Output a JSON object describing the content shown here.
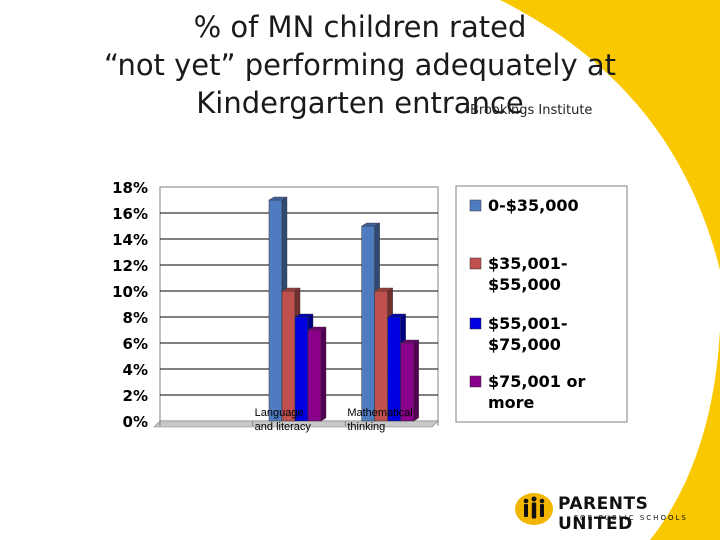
{
  "slide": {
    "title_lines": [
      "% of MN children rated",
      "“not yet” performing adequately at",
      "Kindergarten entrance"
    ],
    "source": "Brookings Institute",
    "background_accent": "#f9c800"
  },
  "chart_data": {
    "type": "bar",
    "categories": [
      "",
      "Language and literacy",
      "Mathematical thinking"
    ],
    "category_label_lines": [
      [],
      [
        "Language",
        "and literacy"
      ],
      [
        "Mathematical",
        "thinking"
      ]
    ],
    "ylim": [
      0,
      18
    ],
    "yticks": [
      "0%",
      "2%",
      "4%",
      "6%",
      "8%",
      "10%",
      "12%",
      "14%",
      "16%",
      "18%"
    ],
    "series": [
      {
        "name": "0-$35,000",
        "name_lines": [
          "0-$35,000"
        ],
        "color": "#4f7cc0",
        "values": [
          null,
          17,
          15
        ]
      },
      {
        "name": "$35,001-$55,000",
        "name_lines": [
          "$35,001-",
          "$55,000"
        ],
        "color": "#c0504d",
        "values": [
          null,
          10,
          10
        ]
      },
      {
        "name": "$55,001-$75,000",
        "name_lines": [
          "$55,001-",
          "$75,000"
        ],
        "color": "#0000e0",
        "values": [
          null,
          8,
          8
        ]
      },
      {
        "name": "$75,001 or more",
        "name_lines": [
          "$75,001 or",
          "more"
        ],
        "color": "#8b008b",
        "values": [
          null,
          7,
          6
        ]
      }
    ],
    "legend_position": "right",
    "grid": true
  },
  "logo": {
    "main": "PARENTS UNITED",
    "sub": "FOR PUBLIC SCHOOLS",
    "mark_color": "#f2b600"
  }
}
